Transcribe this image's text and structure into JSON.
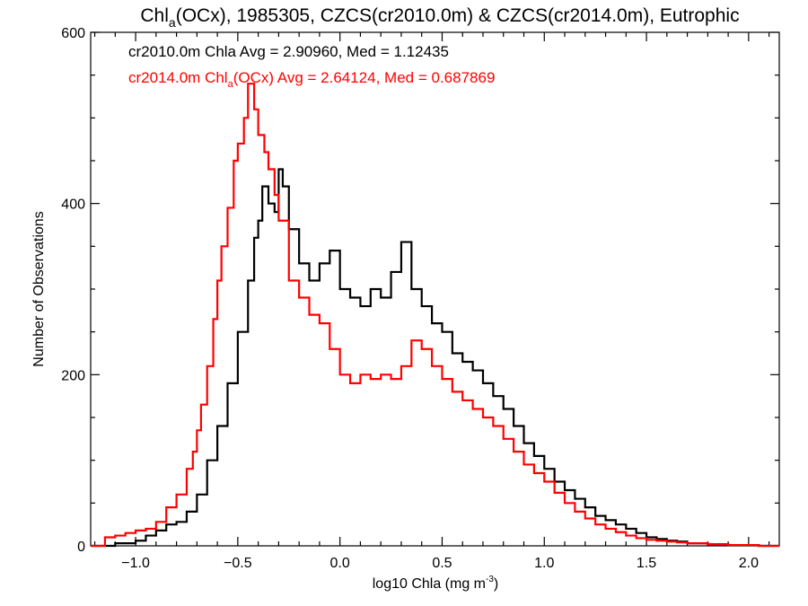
{
  "chart_data": {
    "type": "line",
    "title": {
      "prefix": "Chl",
      "sub": "a",
      "rest": "(OCx), 1985305, CZCS(cr2010.0m) & CZCS(cr2014.0m), Eutrophic"
    },
    "xlabel": {
      "main": "log10 Chla (mg m",
      "sup": "-3",
      "close": ")"
    },
    "ylabel": "Number of Observations",
    "xlim": [
      -1.22,
      2.15
    ],
    "ylim": [
      0,
      600
    ],
    "x_ticks": [
      -1.0,
      -0.5,
      0.0,
      0.5,
      1.0,
      1.5,
      2.0
    ],
    "x_tick_labels": [
      "−1.0",
      "−0.5",
      "0.0",
      "0.5",
      "1.0",
      "1.5",
      "2.0"
    ],
    "y_ticks": [
      0,
      200,
      400,
      600
    ],
    "y_tick_labels": [
      "0",
      "200",
      "400",
      "600"
    ],
    "grid": false,
    "style": "histogram-step",
    "annotations": [
      {
        "text": "cr2010.0m Chla Avg = 2.90960, Med = 1.12435",
        "color": "#000000"
      },
      {
        "prefix": "cr2014.0m Chl",
        "sub": "a",
        "rest": "(OCx) Avg = 2.64124, Med = 0.687869",
        "color": "#ff0000"
      }
    ],
    "series": [
      {
        "color": "#000000",
        "x": [
          -1.22,
          -1.1,
          -1.0,
          -0.95,
          -0.9,
          -0.85,
          -0.8,
          -0.75,
          -0.7,
          -0.65,
          -0.6,
          -0.55,
          -0.5,
          -0.45,
          -0.42,
          -0.4,
          -0.38,
          -0.35,
          -0.32,
          -0.3,
          -0.28,
          -0.25,
          -0.2,
          -0.15,
          -0.1,
          -0.05,
          0.0,
          0.05,
          0.1,
          0.15,
          0.2,
          0.25,
          0.3,
          0.35,
          0.4,
          0.45,
          0.5,
          0.55,
          0.6,
          0.65,
          0.7,
          0.75,
          0.8,
          0.85,
          0.9,
          0.95,
          1.0,
          1.05,
          1.1,
          1.15,
          1.2,
          1.25,
          1.3,
          1.35,
          1.4,
          1.45,
          1.5,
          1.55,
          1.6,
          1.65,
          1.7,
          1.75,
          1.8,
          1.85,
          1.9,
          1.95,
          2.0,
          2.05,
          2.1,
          2.15
        ],
        "values": [
          0,
          3,
          6,
          12,
          18,
          25,
          28,
          40,
          60,
          100,
          140,
          190,
          250,
          310,
          360,
          380,
          420,
          400,
          390,
          440,
          420,
          370,
          330,
          310,
          330,
          345,
          300,
          290,
          280,
          300,
          290,
          320,
          355,
          300,
          280,
          260,
          250,
          225,
          215,
          205,
          190,
          175,
          160,
          140,
          120,
          105,
          90,
          75,
          65,
          55,
          45,
          35,
          30,
          25,
          20,
          15,
          10,
          8,
          6,
          5,
          3,
          3,
          2,
          2,
          1,
          1,
          1,
          0,
          0,
          0
        ]
      },
      {
        "color": "#ff0000",
        "x": [
          -1.22,
          -1.15,
          -1.1,
          -1.05,
          -1.0,
          -0.95,
          -0.9,
          -0.85,
          -0.8,
          -0.75,
          -0.72,
          -0.7,
          -0.68,
          -0.65,
          -0.62,
          -0.6,
          -0.58,
          -0.55,
          -0.52,
          -0.5,
          -0.47,
          -0.45,
          -0.42,
          -0.4,
          -0.37,
          -0.35,
          -0.32,
          -0.3,
          -0.25,
          -0.2,
          -0.15,
          -0.1,
          -0.05,
          0.0,
          0.05,
          0.1,
          0.15,
          0.2,
          0.25,
          0.3,
          0.35,
          0.4,
          0.45,
          0.5,
          0.55,
          0.6,
          0.65,
          0.7,
          0.75,
          0.8,
          0.85,
          0.9,
          0.95,
          1.0,
          1.05,
          1.1,
          1.15,
          1.2,
          1.25,
          1.3,
          1.35,
          1.4,
          1.45,
          1.5,
          1.55,
          1.6,
          1.65,
          1.7,
          1.75,
          1.8,
          1.85,
          1.9,
          1.95,
          2.0,
          2.05,
          2.1,
          2.15
        ],
        "values": [
          0,
          10,
          12,
          15,
          18,
          20,
          28,
          45,
          60,
          90,
          110,
          135,
          165,
          210,
          265,
          310,
          350,
          395,
          450,
          470,
          500,
          540,
          510,
          480,
          460,
          440,
          410,
          380,
          310,
          290,
          270,
          260,
          230,
          200,
          190,
          200,
          195,
          200,
          195,
          210,
          240,
          230,
          210,
          195,
          180,
          170,
          160,
          150,
          140,
          125,
          110,
          95,
          85,
          75,
          62,
          50,
          40,
          32,
          25,
          20,
          16,
          12,
          9,
          7,
          6,
          5,
          4,
          3,
          3,
          2,
          2,
          1,
          1,
          1,
          0,
          0,
          0
        ]
      }
    ]
  }
}
